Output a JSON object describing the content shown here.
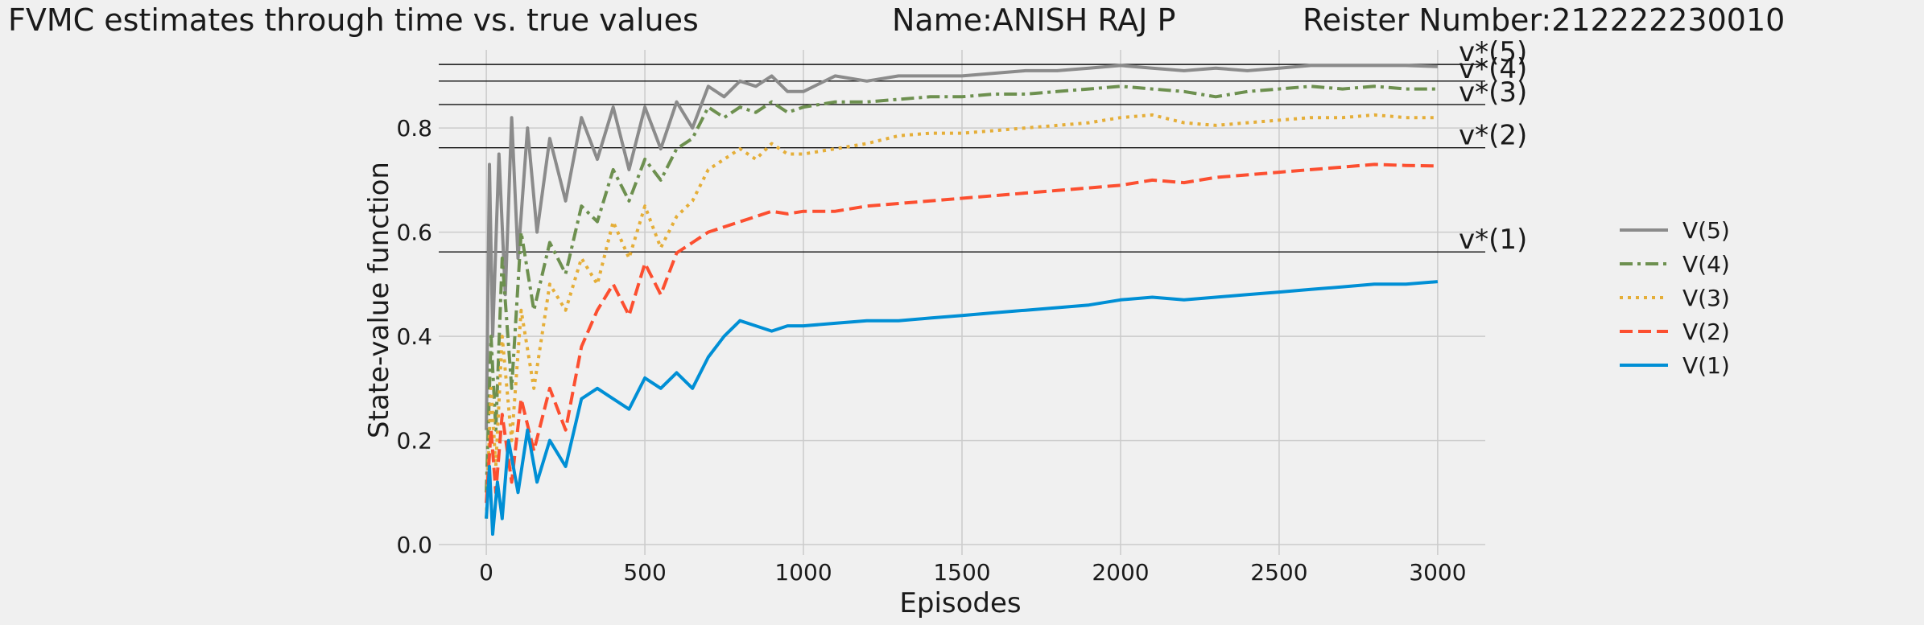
{
  "header": {
    "title": "FVMC estimates through time vs. true values",
    "name_label": "Name:ANISH RAJ P",
    "register_label": "Reister Number:212222230010"
  },
  "chart_data": {
    "type": "line",
    "title": "FVMC estimates through time vs. true values",
    "xlabel": "Episodes",
    "ylabel": "State-value function",
    "xlim": [
      -150,
      3150
    ],
    "ylim": [
      -0.02,
      0.95
    ],
    "xticks": [
      0,
      500,
      1000,
      1500,
      2000,
      2500,
      3000
    ],
    "yticks": [
      0.0,
      0.2,
      0.4,
      0.6,
      0.8
    ],
    "grid": true,
    "legend_position": "right",
    "true_values": [
      {
        "label": "v*(1)",
        "value": 0.562
      },
      {
        "label": "v*(2)",
        "value": 0.762
      },
      {
        "label": "v*(3)",
        "value": 0.845
      },
      {
        "label": "v*(4)",
        "value": 0.89
      },
      {
        "label": "v*(5)",
        "value": 0.922
      }
    ],
    "series": [
      {
        "name": "V(5)",
        "color": "#8b8b8b",
        "dash": "solid",
        "x": [
          0,
          10,
          20,
          40,
          60,
          80,
          100,
          130,
          160,
          200,
          250,
          300,
          350,
          400,
          450,
          500,
          550,
          600,
          650,
          700,
          750,
          800,
          850,
          900,
          950,
          1000,
          1100,
          1200,
          1300,
          1400,
          1500,
          1600,
          1700,
          1800,
          1900,
          2000,
          2100,
          2200,
          2300,
          2400,
          2500,
          2600,
          2700,
          2800,
          2900,
          3000
        ],
        "y": [
          0.22,
          0.73,
          0.4,
          0.75,
          0.48,
          0.82,
          0.55,
          0.8,
          0.6,
          0.78,
          0.66,
          0.82,
          0.74,
          0.84,
          0.72,
          0.84,
          0.76,
          0.85,
          0.8,
          0.88,
          0.86,
          0.89,
          0.88,
          0.9,
          0.87,
          0.87,
          0.9,
          0.89,
          0.9,
          0.9,
          0.9,
          0.905,
          0.91,
          0.91,
          0.915,
          0.92,
          0.915,
          0.91,
          0.915,
          0.91,
          0.915,
          0.92,
          0.92,
          0.92,
          0.92,
          0.918
        ]
      },
      {
        "name": "V(4)",
        "color": "#6d904f",
        "dash": "dashdot",
        "x": [
          0,
          15,
          30,
          50,
          80,
          110,
          150,
          200,
          250,
          300,
          350,
          400,
          450,
          500,
          550,
          600,
          650,
          700,
          750,
          800,
          850,
          900,
          950,
          1000,
          1100,
          1200,
          1300,
          1400,
          1500,
          1600,
          1700,
          1800,
          1900,
          2000,
          2100,
          2200,
          2300,
          2400,
          2500,
          2600,
          2700,
          2800,
          2900,
          3000
        ],
        "y": [
          0.1,
          0.4,
          0.22,
          0.55,
          0.3,
          0.6,
          0.45,
          0.58,
          0.52,
          0.65,
          0.62,
          0.72,
          0.66,
          0.74,
          0.7,
          0.76,
          0.78,
          0.84,
          0.82,
          0.84,
          0.83,
          0.85,
          0.83,
          0.84,
          0.85,
          0.85,
          0.855,
          0.86,
          0.86,
          0.865,
          0.865,
          0.87,
          0.875,
          0.88,
          0.875,
          0.87,
          0.86,
          0.87,
          0.875,
          0.88,
          0.875,
          0.88,
          0.875,
          0.875
        ]
      },
      {
        "name": "V(3)",
        "color": "#e5ae38",
        "dash": "dotted",
        "x": [
          0,
          15,
          30,
          50,
          80,
          110,
          150,
          200,
          250,
          300,
          350,
          400,
          450,
          500,
          550,
          600,
          650,
          700,
          750,
          800,
          850,
          900,
          950,
          1000,
          1100,
          1200,
          1300,
          1400,
          1500,
          1600,
          1700,
          1800,
          1900,
          2000,
          2100,
          2200,
          2300,
          2400,
          2500,
          2600,
          2700,
          2800,
          2900,
          3000
        ],
        "y": [
          0.05,
          0.3,
          0.15,
          0.4,
          0.2,
          0.45,
          0.3,
          0.5,
          0.45,
          0.55,
          0.5,
          0.62,
          0.55,
          0.65,
          0.57,
          0.63,
          0.66,
          0.72,
          0.74,
          0.76,
          0.74,
          0.77,
          0.75,
          0.75,
          0.76,
          0.77,
          0.785,
          0.79,
          0.79,
          0.795,
          0.8,
          0.805,
          0.81,
          0.82,
          0.825,
          0.81,
          0.805,
          0.81,
          0.815,
          0.82,
          0.82,
          0.825,
          0.82,
          0.82
        ]
      },
      {
        "name": "V(2)",
        "color": "#fc4f30",
        "dash": "dashed",
        "x": [
          0,
          15,
          30,
          50,
          80,
          110,
          150,
          200,
          250,
          300,
          350,
          400,
          450,
          500,
          550,
          600,
          650,
          700,
          750,
          800,
          850,
          900,
          950,
          1000,
          1100,
          1200,
          1300,
          1400,
          1500,
          1600,
          1700,
          1800,
          1900,
          2000,
          2100,
          2200,
          2300,
          2400,
          2500,
          2600,
          2700,
          2800,
          2900,
          3000
        ],
        "y": [
          0.08,
          0.22,
          0.1,
          0.25,
          0.12,
          0.28,
          0.18,
          0.3,
          0.22,
          0.38,
          0.45,
          0.5,
          0.44,
          0.54,
          0.48,
          0.56,
          0.58,
          0.6,
          0.61,
          0.62,
          0.63,
          0.64,
          0.635,
          0.64,
          0.64,
          0.65,
          0.655,
          0.66,
          0.665,
          0.67,
          0.675,
          0.68,
          0.685,
          0.69,
          0.7,
          0.695,
          0.705,
          0.71,
          0.715,
          0.72,
          0.725,
          0.73,
          0.728,
          0.727
        ]
      },
      {
        "name": "V(1)",
        "color": "#008fd5",
        "dash": "solid",
        "x": [
          0,
          10,
          20,
          35,
          50,
          70,
          100,
          130,
          160,
          200,
          250,
          300,
          350,
          400,
          450,
          500,
          550,
          600,
          650,
          700,
          750,
          800,
          850,
          900,
          950,
          1000,
          1100,
          1200,
          1300,
          1400,
          1500,
          1600,
          1700,
          1800,
          1900,
          2000,
          2100,
          2200,
          2300,
          2400,
          2500,
          2600,
          2700,
          2800,
          2900,
          3000
        ],
        "y": [
          0.05,
          0.15,
          0.02,
          0.12,
          0.05,
          0.2,
          0.1,
          0.22,
          0.12,
          0.2,
          0.15,
          0.28,
          0.3,
          0.28,
          0.26,
          0.32,
          0.3,
          0.33,
          0.3,
          0.36,
          0.4,
          0.43,
          0.42,
          0.41,
          0.42,
          0.42,
          0.425,
          0.43,
          0.43,
          0.435,
          0.44,
          0.445,
          0.45,
          0.455,
          0.46,
          0.47,
          0.475,
          0.47,
          0.475,
          0.48,
          0.485,
          0.49,
          0.495,
          0.5,
          0.5,
          0.505
        ]
      }
    ],
    "legend_order": [
      "V(5)",
      "V(4)",
      "V(3)",
      "V(2)",
      "V(1)"
    ]
  }
}
